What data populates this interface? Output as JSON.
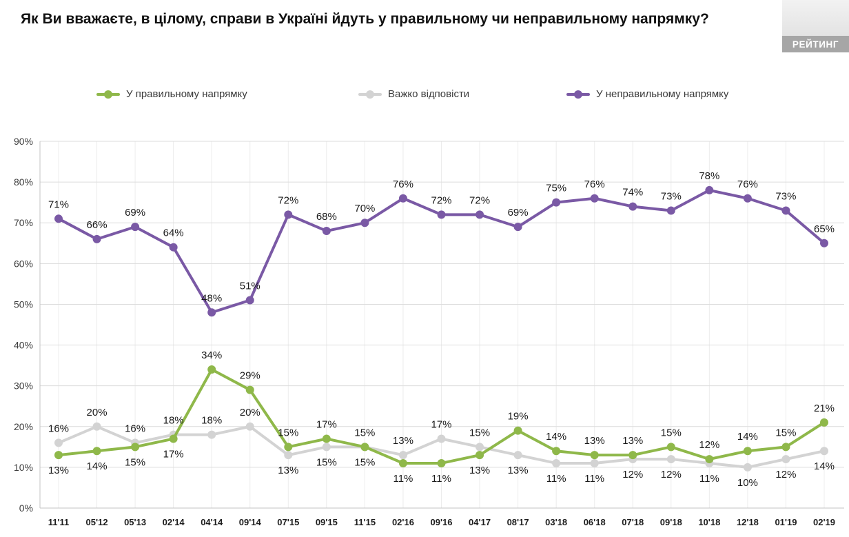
{
  "title": "Як Ви вважаєте, в цілому, справи в Україні йдуть у правильному чи неправильному напрямку?",
  "logo": {
    "text": "РЕЙТИНГ"
  },
  "legend": [
    {
      "label": "У правильному напрямку",
      "color": "#8fb84a"
    },
    {
      "label": "Важко відповісти",
      "color": "#d3d3d3"
    },
    {
      "label": "У неправильному напрямку",
      "color": "#7a59a5"
    }
  ],
  "chart_data": {
    "type": "line",
    "title": "Як Ви вважаєте, в цілому, справи в Україні йдуть у правильному чи неправильному напрямку?",
    "xlabel": "",
    "ylabel": "",
    "ylim": [
      0,
      90
    ],
    "grid": true,
    "legend_position": "top",
    "value_labels": true,
    "yticks": [
      "0%",
      "10%",
      "20%",
      "30%",
      "40%",
      "50%",
      "60%",
      "70%",
      "80%",
      "90%"
    ],
    "categories": [
      "11'11",
      "05'12",
      "05'13",
      "02'14",
      "04'14",
      "09'14",
      "07'15",
      "09'15",
      "11'15",
      "02'16",
      "09'16",
      "04'17",
      "08'17",
      "03'18",
      "06'18",
      "07'18",
      "09'18",
      "10'18",
      "12'18",
      "01'19",
      "02'19"
    ],
    "series": [
      {
        "id": "right-direction",
        "name": "У правильному напрямку",
        "color": "#8fb84a",
        "values": [
          13,
          14,
          15,
          17,
          34,
          29,
          15,
          17,
          15,
          11,
          11,
          13,
          19,
          14,
          13,
          13,
          15,
          12,
          14,
          15,
          21
        ],
        "label_pos": [
          "below",
          "below",
          "below",
          "below",
          "above",
          "above",
          "above",
          "above",
          "above",
          "below",
          "below",
          "below",
          "above",
          "above",
          "above",
          "above",
          "above",
          "above",
          "above",
          "above",
          "above"
        ]
      },
      {
        "id": "hard-to-answer",
        "name": "Важко відповісти",
        "color": "#d3d3d3",
        "values": [
          16,
          20,
          16,
          18,
          18,
          20,
          13,
          15,
          15,
          13,
          17,
          15,
          13,
          11,
          11,
          12,
          12,
          11,
          10,
          12,
          14
        ],
        "label_pos": [
          "above",
          "above",
          "above",
          "above",
          "above",
          "above",
          "below",
          "below",
          "below",
          "above",
          "above",
          "above",
          "below",
          "below",
          "below",
          "below",
          "below",
          "below",
          "below",
          "below",
          "below"
        ]
      },
      {
        "id": "wrong-direction",
        "name": "У неправильному напрямку",
        "color": "#7a59a5",
        "values": [
          71,
          66,
          69,
          64,
          48,
          51,
          72,
          68,
          70,
          76,
          72,
          72,
          69,
          75,
          76,
          74,
          73,
          78,
          76,
          73,
          65
        ],
        "label_pos": [
          "above",
          "above",
          "above",
          "above",
          "above",
          "above",
          "above",
          "above",
          "above",
          "above",
          "above",
          "above",
          "above",
          "above",
          "above",
          "above",
          "above",
          "above",
          "above",
          "above",
          "above"
        ]
      }
    ]
  }
}
